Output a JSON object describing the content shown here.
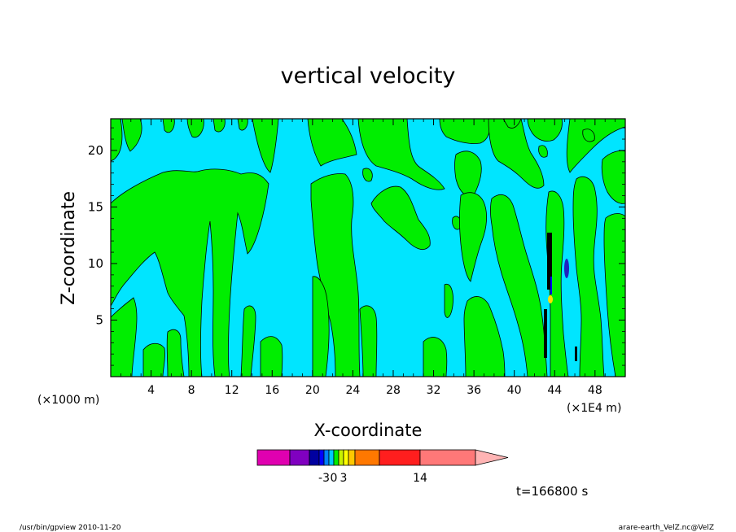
{
  "chart_data": {
    "type": "heatmap",
    "title": "vertical velocity",
    "xlabel": "X-coordinate",
    "ylabel": "Z-coordinate",
    "x_scale_label": "(×1E4 m)",
    "y_scale_label": "(×1000 m)",
    "xlim": [
      0,
      51
    ],
    "ylim": [
      0,
      22.8
    ],
    "x_ticks": [
      "4",
      "8",
      "12",
      "16",
      "20",
      "24",
      "28",
      "32",
      "36",
      "40",
      "44",
      "48"
    ],
    "y_ticks": [
      "5",
      "10",
      "15",
      "20"
    ],
    "field_regions": [
      {
        "level": "negative",
        "color": "#00e5ff"
      },
      {
        "level": "positive",
        "color": "#00ee00"
      }
    ],
    "colorbar": {
      "segment_colors": [
        "#e000b0",
        "#8000c0",
        "#0000a0",
        "#0000ff",
        "#0080ff",
        "#00c8ff",
        "#00ee00",
        "#c8f000",
        "#ffff00",
        "#ffc800",
        "#ff7800",
        "#ff1e1e",
        "#ff7878"
      ],
      "triangle_color": "#ffb4b4",
      "labels": [
        {
          "text": "-3",
          "segment": 4
        },
        {
          "text": "0",
          "segment": 6
        },
        {
          "text": "3",
          "segment": 8
        },
        {
          "text": "14",
          "segment": 12
        }
      ]
    },
    "time_label": "t=166800 s",
    "footer_left": "/usr/bin/gpview   2010-11-20",
    "footer_right": "arare-earth_VelZ.nc@VelZ"
  }
}
